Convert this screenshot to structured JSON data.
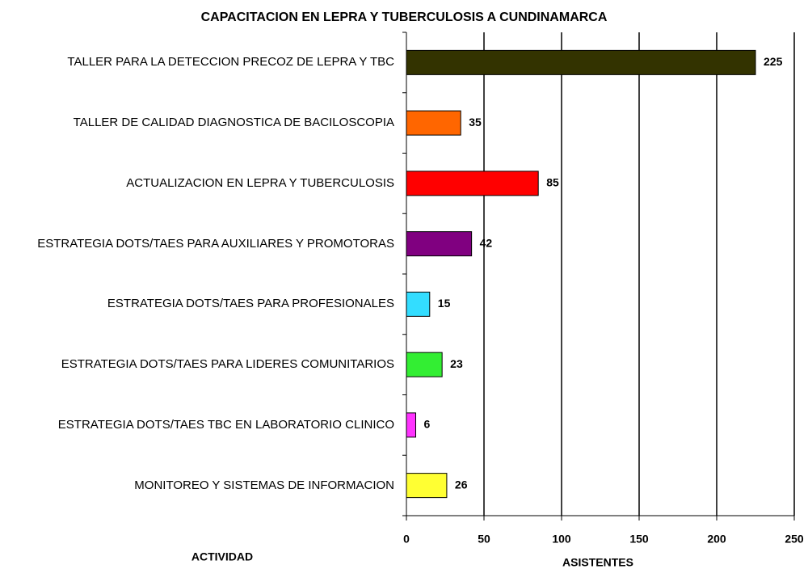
{
  "chart_data": {
    "type": "bar",
    "orientation": "horizontal",
    "title": "CAPACITACION EN LEPRA Y TUBERCULOSIS A CUNDINAMARCA",
    "xlabel": "ASISTENTES",
    "ylabel": "ACTIVIDAD",
    "categories": [
      "TALLER PARA LA DETECCION PRECOZ DE LEPRA Y TBC",
      "TALLER DE CALIDAD DIAGNOSTICA DE BACILOSCOPIA",
      "ACTUALIZACION EN LEPRA Y TUBERCULOSIS",
      "ESTRATEGIA DOTS/TAES PARA AUXILIARES Y PROMOTORAS",
      "ESTRATEGIA DOTS/TAES PARA PROFESIONALES",
      "ESTRATEGIA DOTS/TAES PARA LIDERES COMUNITARIOS",
      "ESTRATEGIA DOTS/TAES TBC EN LABORATORIO CLINICO",
      "MONITOREO Y SISTEMAS DE INFORMACION"
    ],
    "values": [
      225,
      35,
      85,
      42,
      15,
      23,
      6,
      26
    ],
    "colors": [
      "#333300",
      "#ff6600",
      "#ff0000",
      "#800080",
      "#33ddff",
      "#33ee33",
      "#ff33ff",
      "#ffff33"
    ],
    "xlim": [
      0,
      250
    ],
    "xticks": [
      0,
      50,
      100,
      150,
      200,
      250
    ],
    "grid": true
  }
}
